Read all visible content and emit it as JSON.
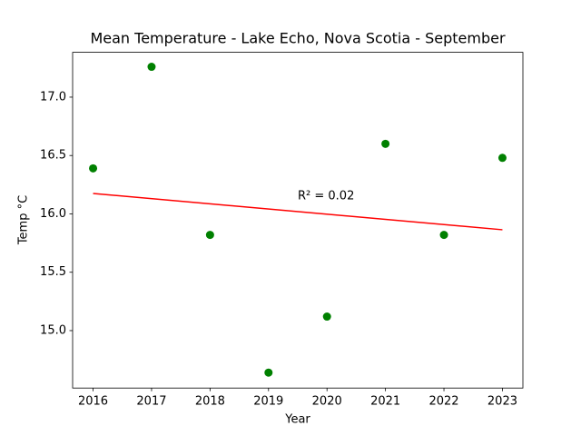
{
  "chart_data": {
    "type": "scatter",
    "title": "Mean Temperature - Lake Echo, Nova Scotia - September",
    "xlabel": "Year",
    "ylabel": "Temp °C",
    "x": [
      2016,
      2017,
      2018,
      2019,
      2020,
      2021,
      2022,
      2023
    ],
    "series": [
      {
        "color": "#008000",
        "values": [
          16.39,
          17.26,
          15.82,
          14.64,
          15.12,
          16.6,
          15.82,
          16.48
        ]
      }
    ],
    "trendline": {
      "color": "#ff0000",
      "x": [
        2016,
        2023
      ],
      "values": [
        16.175,
        15.864
      ]
    },
    "annotation": "R² = 0.02",
    "xlim": [
      2015.65,
      2023.35
    ],
    "xticks": [
      2016,
      2017,
      2018,
      2019,
      2020,
      2021,
      2022,
      2023
    ],
    "ylim": [
      14.508,
      17.384
    ],
    "yticks": [
      {
        "value": 15,
        "label": "15.0"
      },
      15.5,
      {
        "value": 16,
        "label": "16.0"
      },
      16.5,
      {
        "value": 17,
        "label": "17.0"
      }
    ]
  }
}
